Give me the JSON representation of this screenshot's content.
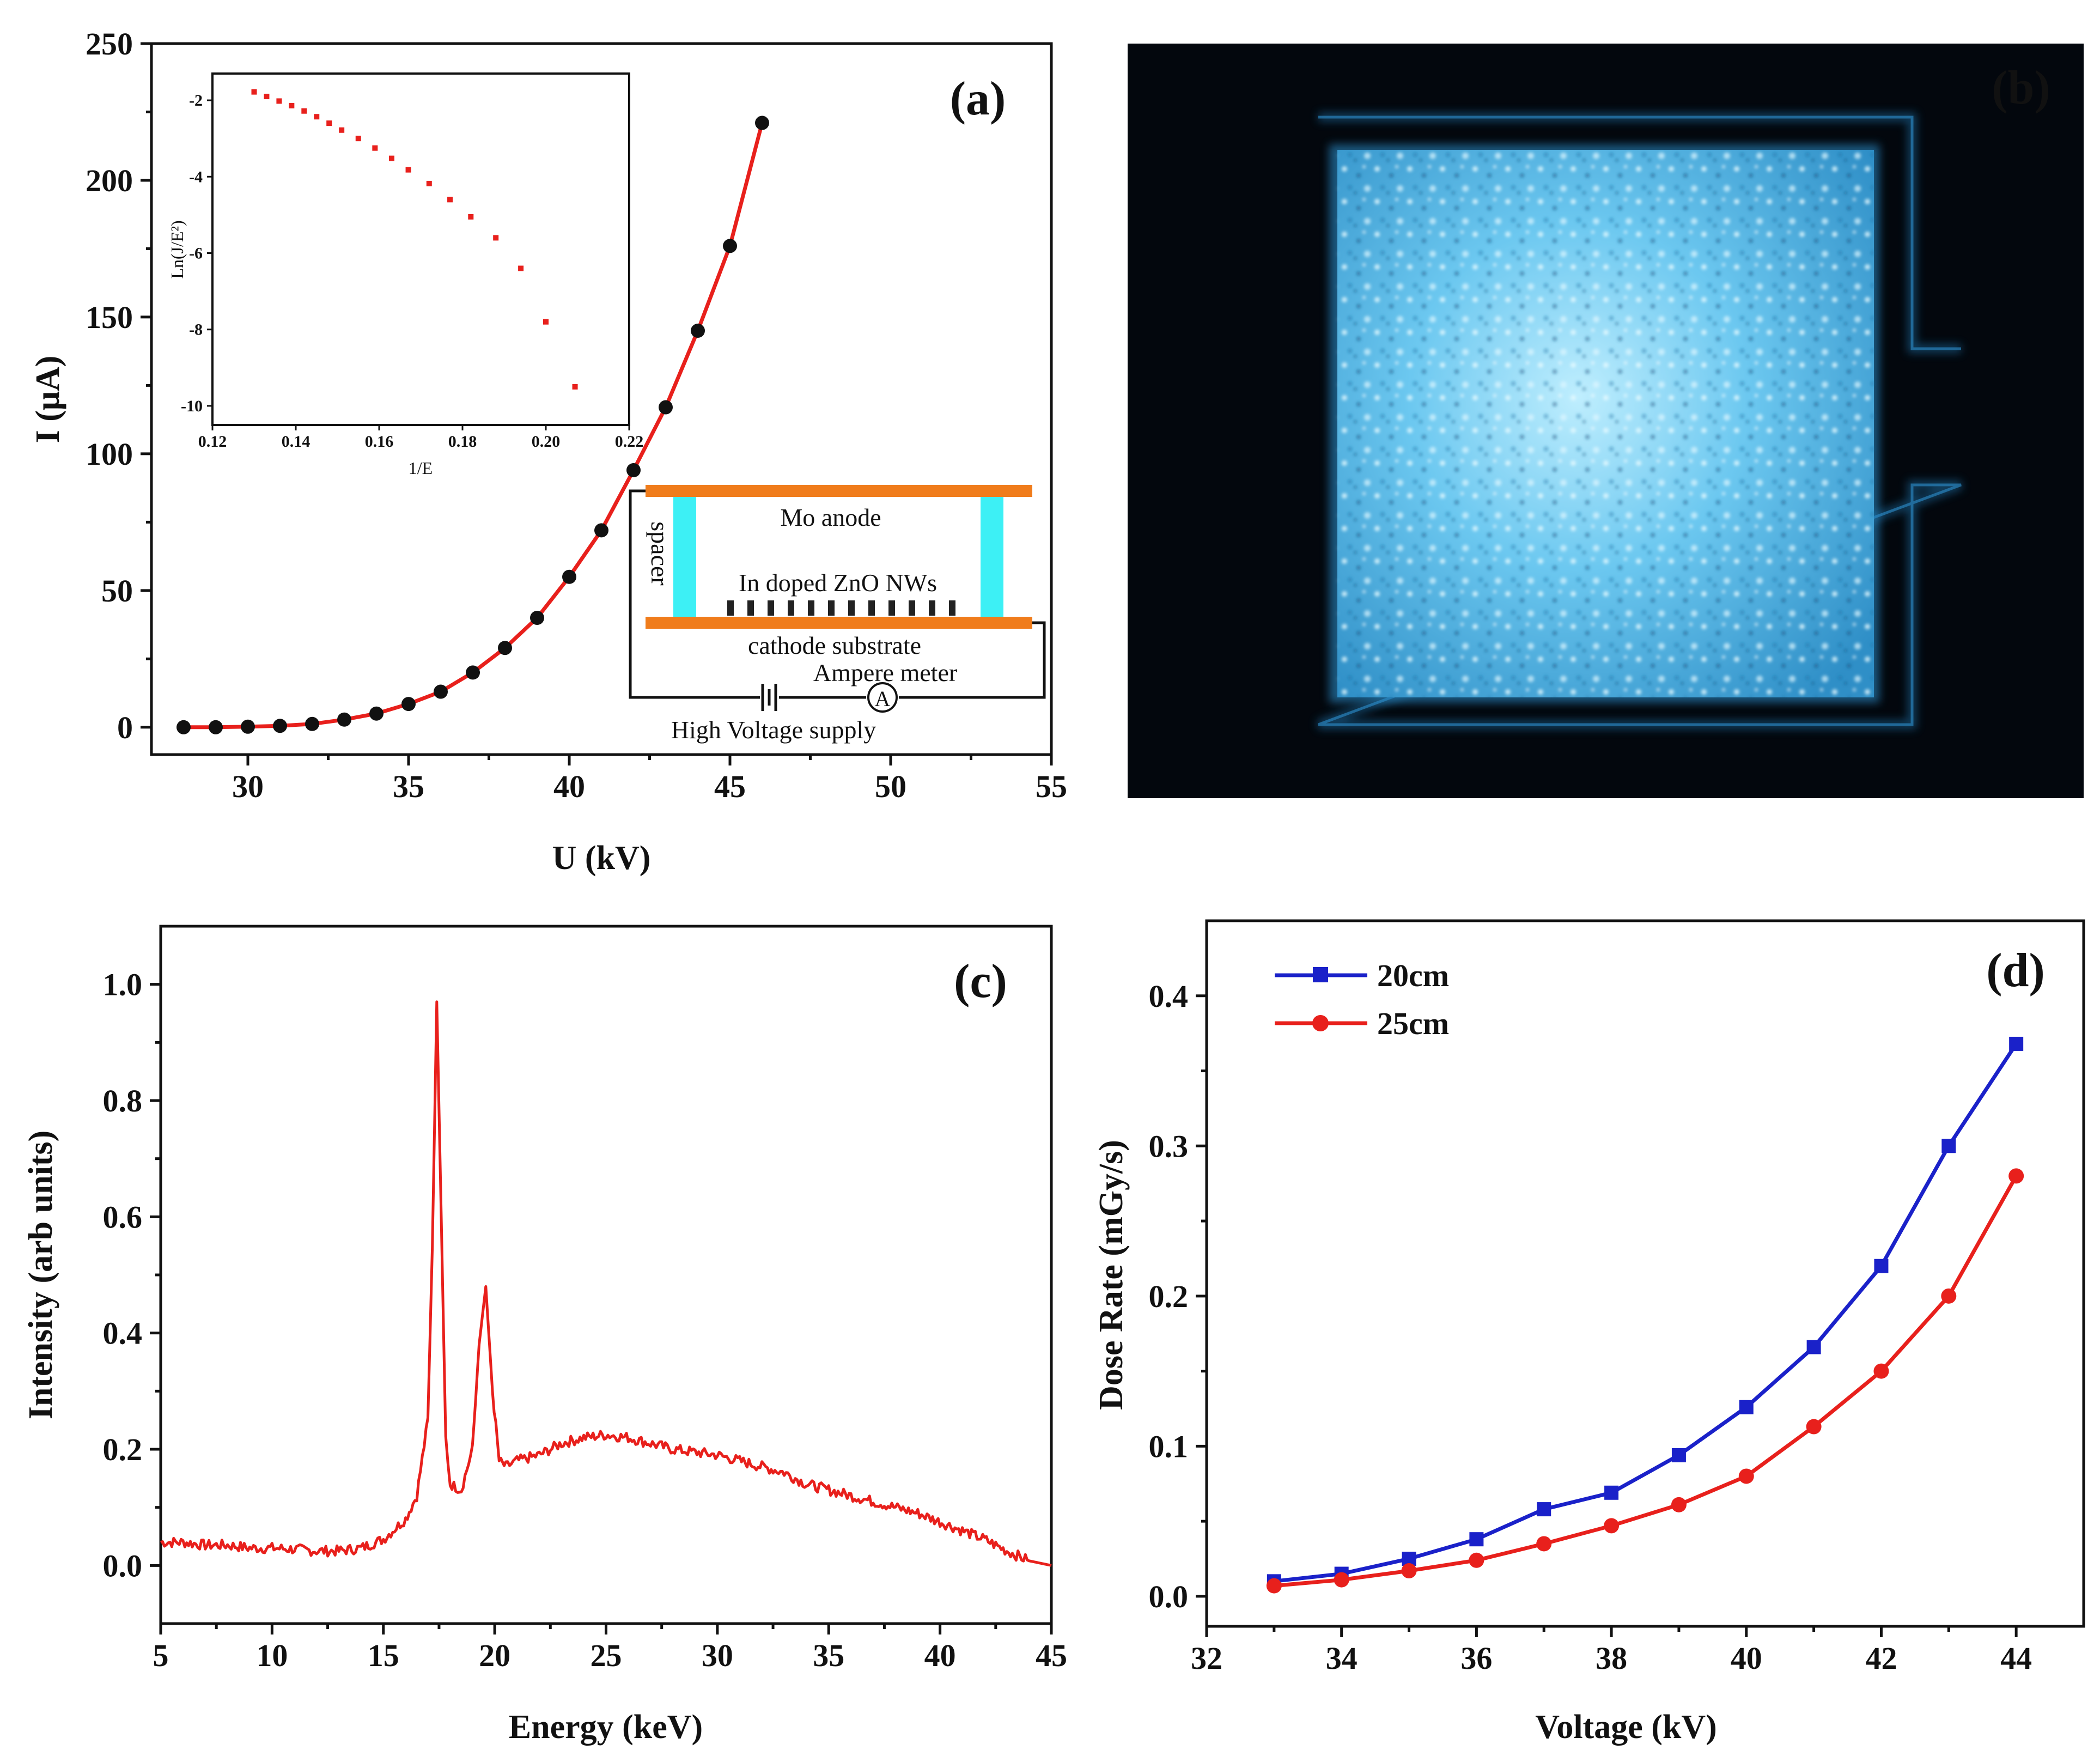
{
  "figure": {
    "panel_labels": [
      "(a)",
      "(b)",
      "(c)",
      "(d)"
    ]
  },
  "chart_data": [
    {
      "id": "a",
      "type": "line",
      "panel_label": "(a)",
      "xlabel": "U (kV)",
      "ylabel": "I (μA)",
      "xlim": [
        27,
        55
      ],
      "ylim": [
        -10,
        250
      ],
      "xticks": [
        30,
        35,
        40,
        45,
        50,
        55
      ],
      "yticks": [
        0,
        50,
        100,
        150,
        200,
        250
      ],
      "series": [
        {
          "name": "I-U",
          "color": "#e8201c",
          "marker_color": "#111111",
          "x": [
            28,
            29,
            30,
            31,
            32,
            33,
            34,
            35,
            36,
            37,
            38,
            39,
            40,
            41,
            42,
            43,
            44,
            45,
            46
          ],
          "y": [
            0,
            0,
            0.2,
            0.5,
            1.2,
            2.8,
            5,
            8.5,
            13,
            20,
            29,
            40,
            55,
            72,
            94,
            117,
            145,
            176,
            221
          ]
        }
      ],
      "inset": {
        "type": "scatter",
        "xlabel": "1/E",
        "ylabel": "Ln(J/E²)",
        "xlim": [
          0.12,
          0.22
        ],
        "ylim": [
          -10.5,
          -1.3
        ],
        "xticks": [
          0.12,
          0.14,
          0.16,
          0.18,
          0.2,
          0.22
        ],
        "xtick_labels": [
          "0.12",
          "0.14",
          "0.16",
          "0.18",
          "0.20",
          "0.22"
        ],
        "yticks": [
          -2,
          -4,
          -6,
          -8,
          -10
        ],
        "color": "#e8201c",
        "x": [
          0.13,
          0.133,
          0.136,
          0.139,
          0.142,
          0.145,
          0.148,
          0.151,
          0.155,
          0.159,
          0.163,
          0.167,
          0.172,
          0.177,
          0.182,
          0.188,
          0.194,
          0.2,
          0.207
        ],
        "y": [
          -1.78,
          -1.9,
          -2.02,
          -2.14,
          -2.28,
          -2.43,
          -2.6,
          -2.78,
          -3,
          -3.25,
          -3.52,
          -3.82,
          -4.18,
          -4.6,
          -5.05,
          -5.6,
          -6.4,
          -7.8,
          -9.5
        ]
      },
      "schematic": {
        "anode": "Mo anode",
        "spacer": "spacer",
        "nanowires": "In doped ZnO NWs",
        "cathode": "cathode substrate",
        "meter": "Ampere meter",
        "meter_symbol": "A",
        "supply": "High  Voltage supply"
      }
    },
    {
      "id": "c",
      "type": "line",
      "panel_label": "(c)",
      "xlabel": "Energy (keV)",
      "ylabel": "Intensity (arb units)",
      "xlim": [
        5,
        45
      ],
      "ylim": [
        -0.1,
        1.1
      ],
      "xticks": [
        5,
        10,
        15,
        20,
        25,
        30,
        35,
        40,
        45
      ],
      "yticks": [
        0.0,
        0.2,
        0.4,
        0.6,
        0.8,
        1.0
      ],
      "ytick_labels": [
        "0.0",
        "0.2",
        "0.4",
        "0.6",
        "0.8",
        "1.0"
      ],
      "color": "#e8201c",
      "peaks": [
        {
          "energy": 17.4,
          "intensity": 0.97
        },
        {
          "energy": 19.6,
          "intensity": 0.48
        }
      ],
      "x": [
        5,
        6,
        7,
        8,
        9,
        10,
        11,
        12,
        13,
        14,
        15,
        16,
        16.5,
        17,
        17.2,
        17.4,
        17.6,
        17.8,
        18,
        18.5,
        19,
        19.3,
        19.6,
        19.9,
        20.2,
        20.5,
        21,
        22,
        23,
        24,
        25,
        26,
        27,
        28,
        29,
        30,
        31,
        32,
        33,
        34,
        35,
        36,
        37,
        38,
        39,
        40,
        41,
        42,
        43,
        44,
        45
      ],
      "y": [
        0.04,
        0.04,
        0.035,
        0.035,
        0.03,
        0.03,
        0.028,
        0.025,
        0.025,
        0.03,
        0.045,
        0.08,
        0.12,
        0.25,
        0.55,
        0.97,
        0.6,
        0.22,
        0.14,
        0.13,
        0.2,
        0.38,
        0.48,
        0.3,
        0.18,
        0.17,
        0.18,
        0.19,
        0.21,
        0.22,
        0.225,
        0.22,
        0.21,
        0.2,
        0.195,
        0.19,
        0.18,
        0.17,
        0.16,
        0.14,
        0.13,
        0.12,
        0.11,
        0.1,
        0.09,
        0.075,
        0.06,
        0.045,
        0.025,
        0.008,
        0.0
      ]
    },
    {
      "id": "d",
      "type": "line",
      "panel_label": "(d)",
      "xlabel": "Voltage (kV)",
      "ylabel": "Dose Rate (mGy/s)",
      "xlim": [
        32,
        45
      ],
      "ylim": [
        -0.02,
        0.45
      ],
      "xticks": [
        32,
        34,
        36,
        38,
        40,
        42,
        44
      ],
      "yticks": [
        0.0,
        0.1,
        0.2,
        0.3,
        0.4
      ],
      "ytick_labels": [
        "0.0",
        "0.1",
        "0.2",
        "0.3",
        "0.4"
      ],
      "legend_position": "top-left",
      "categories": [
        33,
        34,
        35,
        36,
        37,
        38,
        39,
        40,
        41,
        42,
        43,
        44
      ],
      "series": [
        {
          "name": "20cm",
          "color": "#1a21c9",
          "marker": "square",
          "values": [
            0.01,
            0.015,
            0.025,
            0.038,
            0.058,
            0.069,
            0.094,
            0.126,
            0.166,
            0.22,
            0.3,
            0.368
          ]
        },
        {
          "name": "25cm",
          "color": "#e8201c",
          "marker": "circle",
          "values": [
            0.007,
            0.011,
            0.017,
            0.024,
            0.035,
            0.047,
            0.061,
            0.08,
            0.113,
            0.15,
            0.2,
            0.28
          ]
        }
      ]
    }
  ],
  "photo": {
    "panel_label": "(b)",
    "glow_color": "#5fc6f2",
    "background": "#03070d"
  }
}
